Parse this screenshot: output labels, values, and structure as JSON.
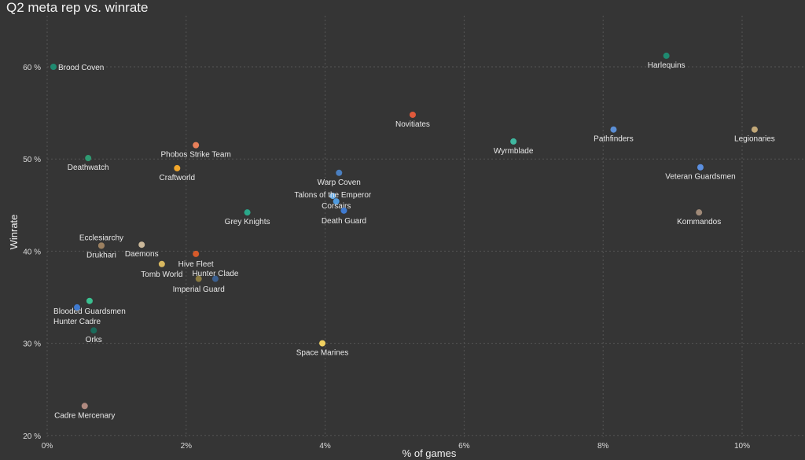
{
  "chart_data": {
    "type": "scatter",
    "title": "Q2 meta rep vs. winrate",
    "xlabel": "% of games",
    "ylabel": "Winrate",
    "xlim": [
      0,
      11.3
    ],
    "ylim": [
      20,
      63.5
    ],
    "xticks": [
      0,
      2,
      4,
      6,
      8,
      10
    ],
    "xtick_labels": [
      "0%",
      "2%",
      "4%",
      "6%",
      "8%",
      "10%"
    ],
    "yticks": [
      20,
      30,
      40,
      50,
      60
    ],
    "ytick_labels": [
      "20 %",
      "30 %",
      "40 %",
      "50 %",
      "60 %"
    ],
    "grid": true,
    "points": [
      {
        "name": "Brood Coven",
        "x": 0.09,
        "y": 60.0,
        "color": "#1f8a70",
        "lab": "right"
      },
      {
        "name": "Harlequins",
        "x": 8.91,
        "y": 61.2,
        "color": "#1f8a70",
        "lab": "below"
      },
      {
        "name": "Novitiates",
        "x": 5.26,
        "y": 54.8,
        "color": "#e0593b",
        "lab": "below"
      },
      {
        "name": "Wyrmblade",
        "x": 6.71,
        "y": 51.9,
        "color": "#3fb8a0",
        "lab": "below"
      },
      {
        "name": "Pathfinders",
        "x": 8.15,
        "y": 53.2,
        "color": "#5b8fd6",
        "lab": "below"
      },
      {
        "name": "Legionaries",
        "x": 10.18,
        "y": 53.2,
        "color": "#c2a878",
        "lab": "below"
      },
      {
        "name": "Phobos Strike Team",
        "x": 2.14,
        "y": 51.5,
        "color": "#e8805a",
        "lab": "below"
      },
      {
        "name": "Deathwatch",
        "x": 0.59,
        "y": 50.1,
        "color": "#2f9a72",
        "lab": "below"
      },
      {
        "name": "Craftworld",
        "x": 1.87,
        "y": 49.0,
        "color": "#f2a72b",
        "lab": "below"
      },
      {
        "name": "Warp Coven",
        "x": 4.2,
        "y": 48.5,
        "color": "#4a7fc0",
        "lab": "below"
      },
      {
        "name": "Veteran Guardsmen",
        "x": 9.4,
        "y": 49.1,
        "color": "#5b8fe0",
        "lab": "below"
      },
      {
        "name": "Talons of the Emperor",
        "x": 4.11,
        "y": 46.0,
        "color": "#6aaee8",
        "lab": "above"
      },
      {
        "name": "Corsairs",
        "x": 4.16,
        "y": 45.4,
        "color": "#4f9be0",
        "lab": "below"
      },
      {
        "name": "Death Guard",
        "x": 4.27,
        "y": 44.4,
        "color": "#3f7ad0",
        "lab": "below"
      },
      {
        "name": "Grey Knights",
        "x": 2.88,
        "y": 44.2,
        "color": "#2aa88a",
        "lab": "below"
      },
      {
        "name": "Kommandos",
        "x": 9.38,
        "y": 44.2,
        "color": "#a08a78",
        "lab": "below"
      },
      {
        "name": "Ecclesiarchy",
        "x": 0.78,
        "y": 40.6,
        "color": "#9c8060",
        "lab": "above"
      },
      {
        "name": "Drukhari",
        "x": 0.78,
        "y": 40.6,
        "color": "#9c8060",
        "lab": "below"
      },
      {
        "name": "Daemons",
        "x": 1.36,
        "y": 40.7,
        "color": "#cbb89a",
        "lab": "below"
      },
      {
        "name": "Hive Fleet",
        "x": 2.14,
        "y": 39.7,
        "color": "#d55a2a",
        "lab": "below"
      },
      {
        "name": "Tomb World",
        "x": 1.65,
        "y": 38.6,
        "color": "#d8b860",
        "lab": "below"
      },
      {
        "name": "Imperial Guard",
        "x": 2.18,
        "y": 37.0,
        "color": "#8a7a40",
        "lab": "below"
      },
      {
        "name": "Hunter Clade",
        "x": 2.42,
        "y": 37.0,
        "color": "#3a5f90",
        "lab": "above"
      },
      {
        "name": "Blooded Guardsmen",
        "x": 0.61,
        "y": 34.6,
        "color": "#3ac090",
        "lab": "below"
      },
      {
        "name": "Hunter Cadre",
        "x": 0.43,
        "y": 33.9,
        "color": "#3f7ad0",
        "lab": "below"
      },
      {
        "name": "Orks",
        "x": 0.67,
        "y": 31.4,
        "color": "#1a6a5a",
        "lab": "below"
      },
      {
        "name": "Space Marines",
        "x": 3.96,
        "y": 30.0,
        "color": "#f0d060",
        "lab": "below"
      },
      {
        "name": "Cadre Mercenary",
        "x": 0.54,
        "y": 23.2,
        "color": "#b08a80",
        "lab": "below"
      }
    ]
  }
}
